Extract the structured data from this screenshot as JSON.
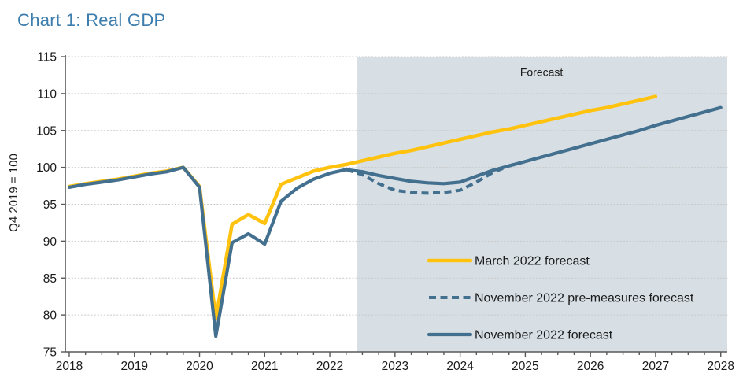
{
  "title": "Chart 1: Real GDP",
  "colors": {
    "title_blue": "#3d7eae",
    "march_yellow": "#ffc20e",
    "november_blue": "#44708f",
    "forecast_shade": "#d7dfe5",
    "gridline": "#c9c9c9",
    "axis": "#595959",
    "text": "#1a1a1a"
  },
  "chart_data": {
    "type": "line",
    "title": "Chart 1: Real GDP",
    "xlabel": "",
    "ylabel": "Q4 2019 = 100",
    "x_range": [
      2017.94,
      2028.1
    ],
    "y_range": [
      75,
      115
    ],
    "x_ticks": [
      2018,
      2019,
      2020,
      2021,
      2022,
      2023,
      2024,
      2025,
      2026,
      2027,
      2028
    ],
    "y_ticks": [
      75,
      80,
      85,
      90,
      95,
      100,
      105,
      110,
      115
    ],
    "minor_tick_step": 0.25,
    "grid": "horizontal-dotted",
    "legend_position": "inside-lower-right",
    "forecast_region": {
      "label": "Forecast",
      "from": 2022.42,
      "to": 2028.1,
      "label_x": 2025.25,
      "label_y": 112.4
    },
    "series": [
      {
        "name": "March 2022 forecast",
        "color": "#ffc20e",
        "style": "solid",
        "width": 4.5,
        "start": 2018.0,
        "step": 0.25,
        "values": [
          97.4,
          97.8,
          98.1,
          98.4,
          98.8,
          99.2,
          99.5,
          100.0,
          97.4,
          79.5,
          92.3,
          93.6,
          92.4,
          97.7,
          98.6,
          99.5,
          100.0,
          100.4,
          100.9,
          101.4,
          101.9,
          102.3,
          102.8,
          103.3,
          103.8,
          104.3,
          104.8,
          105.2,
          105.7,
          106.2,
          106.7,
          107.2,
          107.7,
          108.1,
          108.6,
          109.1,
          109.6
        ]
      },
      {
        "name": "November 2022 pre-measures forecast",
        "color": "#44708f",
        "style": "dashed",
        "width": 4,
        "start": 2022.25,
        "step": 0.25,
        "values": [
          99.7,
          99.0,
          97.8,
          96.9,
          96.6,
          96.5,
          96.6,
          96.9,
          98.0,
          99.3,
          100.2,
          100.8,
          101.4,
          102.0,
          102.6,
          103.2,
          103.8,
          104.4,
          105.0,
          105.7,
          106.3,
          106.9,
          107.5,
          108.1
        ]
      },
      {
        "name": "November 2022 forecast",
        "color": "#44708f",
        "style": "solid",
        "width": 4.2,
        "start": 2018.0,
        "step": 0.25,
        "values": [
          97.3,
          97.7,
          98.0,
          98.3,
          98.7,
          99.1,
          99.4,
          100.0,
          97.3,
          77.1,
          89.8,
          91.0,
          89.6,
          95.4,
          97.2,
          98.4,
          99.2,
          99.7,
          99.4,
          98.9,
          98.5,
          98.1,
          97.9,
          97.8,
          98.0,
          98.8,
          99.6,
          100.2,
          100.8,
          101.4,
          102.0,
          102.6,
          103.2,
          103.8,
          104.4,
          105.0,
          105.7,
          106.3,
          106.9,
          107.5,
          108.1
        ]
      }
    ]
  }
}
